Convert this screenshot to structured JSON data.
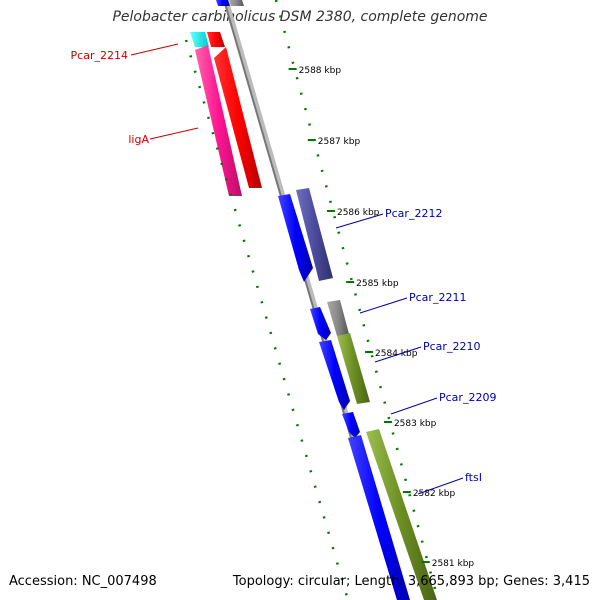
{
  "title": "Pelobacter carbinolicus DSM 2380, complete genome",
  "footer": {
    "accession": "Accession: NC_007498",
    "summary": "Topology: circular; Length: 3,665,893 bp; Genes: 3,415"
  },
  "ticks": [
    "2588 kbp",
    "2587 kbp",
    "2586 kbp",
    "2585 kbp",
    "2584 kbp",
    "2583 kbp",
    "2582 kbp",
    "2581 kbp"
  ],
  "genes": {
    "reverse": [
      "Pcar_2214",
      "ligA"
    ],
    "forward": [
      "Pcar_2212",
      "Pcar_2211",
      "Pcar_2210",
      "Pcar_2209",
      "ftsI"
    ]
  },
  "colors": {
    "reverse_label": "#cc0000",
    "forward_label": "#0000aa",
    "tick": "#007700",
    "backbone": "#888888"
  }
}
